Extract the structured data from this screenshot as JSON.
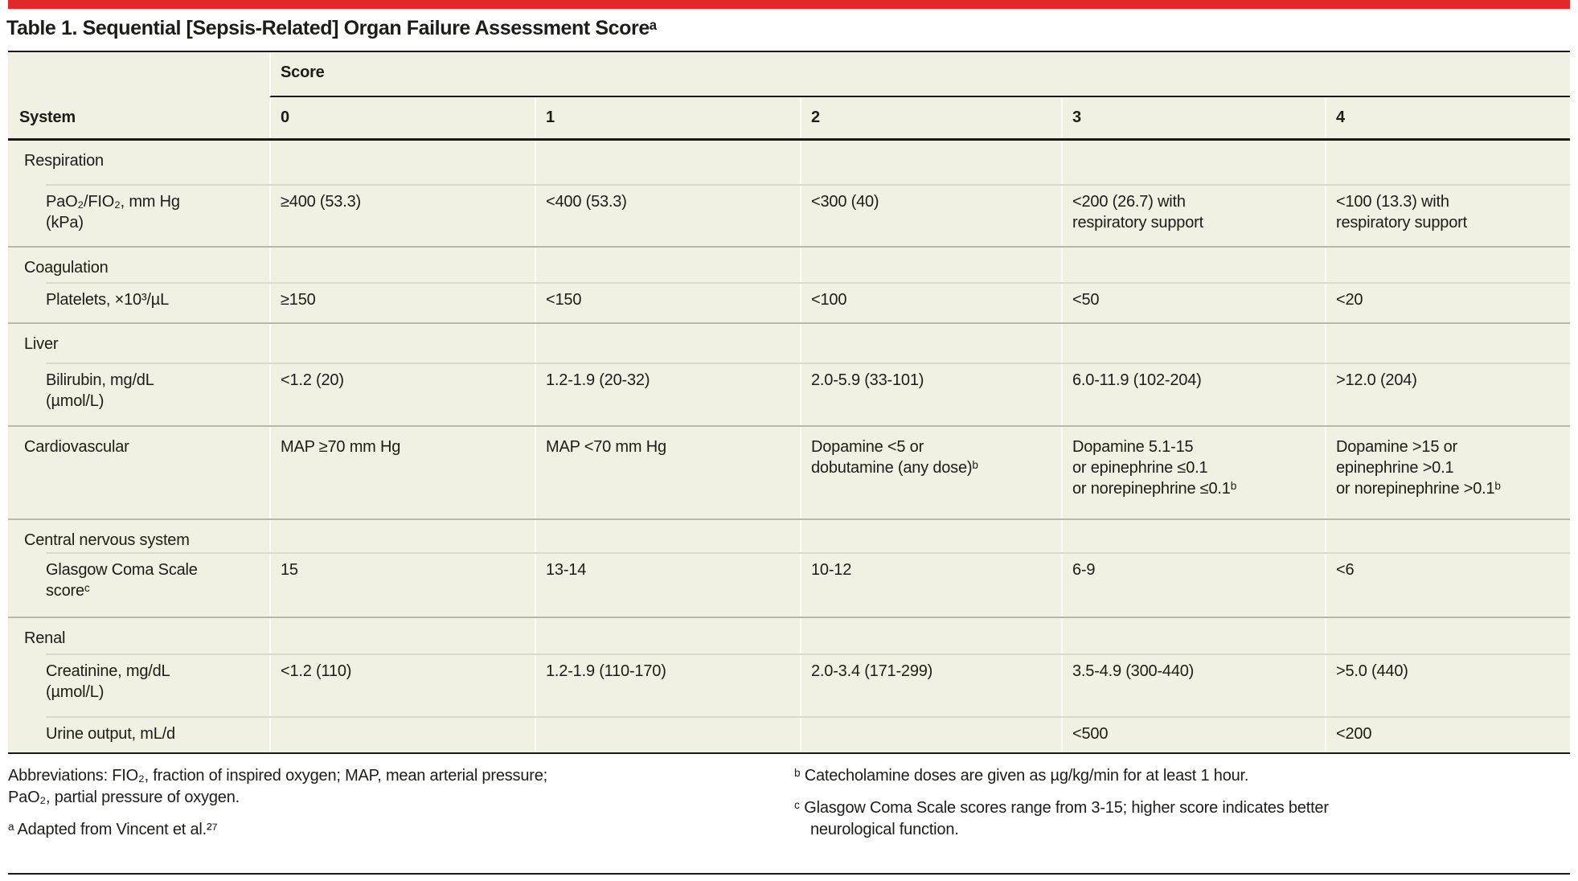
{
  "page": {
    "title": "Table 1. Sequential [Sepsis-Related] Organ Failure Assessment Scoreᵃ",
    "accent_red": "#e12a28",
    "table_background": "#f2efe3",
    "rule_black": "#191916"
  },
  "table": {
    "spanner": "Score",
    "col_system": "System",
    "cols": [
      "0",
      "1",
      "2",
      "3",
      "4"
    ],
    "sections": [
      {
        "name": "Respiration",
        "rows": [
          {
            "label": "PaO₂/FIO₂, mm Hg\n(kPa)",
            "values": [
              "≥400 (53.3)",
              "<400 (53.3)",
              "<300 (40)",
              "<200 (26.7) with\nrespiratory support",
              "<100 (13.3) with\nrespiratory support"
            ]
          }
        ]
      },
      {
        "name": "Coagulation",
        "rows": [
          {
            "label": "Platelets, ×10³/µL",
            "values": [
              "≥150",
              "<150",
              "<100",
              "<50",
              "<20"
            ]
          }
        ]
      },
      {
        "name": "Liver",
        "rows": [
          {
            "label": "Bilirubin, mg/dL\n(µmol/L)",
            "values": [
              "<1.2 (20)",
              "1.2-1.9 (20-32)",
              "2.0-5.9 (33-101)",
              "6.0-11.9 (102-204)",
              ">12.0 (204)"
            ]
          }
        ]
      },
      {
        "name": "Cardiovascular",
        "values": [
          "MAP ≥70 mm Hg",
          "MAP <70 mm Hg",
          "Dopamine <5 or\ndobutamine (any dose)ᵇ",
          "Dopamine 5.1-15\nor epinephrine ≤0.1\nor norepinephrine ≤0.1ᵇ",
          "Dopamine >15 or\nepinephrine >0.1\nor norepinephrine >0.1ᵇ"
        ]
      },
      {
        "name": "Central nervous system",
        "rows": [
          {
            "label": "Glasgow Coma Scale\nscoreᶜ",
            "values": [
              "15",
              "13-14",
              "10-12",
              "6-9",
              "<6"
            ]
          }
        ]
      },
      {
        "name": "Renal",
        "rows": [
          {
            "label": "Creatinine, mg/dL\n(µmol/L)",
            "values": [
              "<1.2 (110)",
              "1.2-1.9 (110-170)",
              "2.0-3.4 (171-299)",
              "3.5-4.9 (300-440)",
              ">5.0 (440)"
            ]
          },
          {
            "label": "Urine output, mL/d",
            "values": [
              "",
              "",
              "",
              "<500",
              "<200"
            ]
          }
        ]
      }
    ]
  },
  "footnotes": {
    "abbreviations": "Abbreviations: FIO₂, fraction of inspired oxygen; MAP, mean arterial pressure;\nPaO₂, partial pressure of oxygen.",
    "a": "ᵃ Adapted from Vincent et al.²⁷",
    "b": "ᵇ Catecholamine doses are given as µg/kg/min for at least 1 hour.",
    "c": "ᶜ Glasgow Coma Scale scores range from 3-15; higher score indicates better\nneurological function."
  }
}
